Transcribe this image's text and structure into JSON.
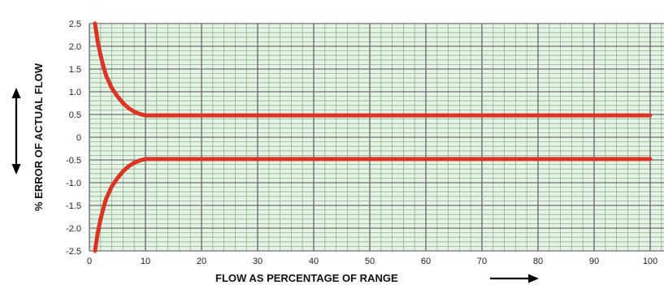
{
  "chart_data": {
    "type": "line",
    "title": "",
    "xlabel": "FLOW AS PERCENTAGE OF RANGE",
    "ylabel": "% ERROR OF ACTUAL FLOW",
    "xlim": [
      0,
      100
    ],
    "ylim": [
      -2.5,
      2.5
    ],
    "x_ticks": [
      0,
      10,
      20,
      30,
      40,
      50,
      60,
      70,
      80,
      90,
      100
    ],
    "x_tick_labels": [
      "0",
      "10",
      "20",
      "30",
      "40",
      "50",
      "60",
      "70",
      "80",
      "90",
      "100"
    ],
    "y_ticks": [
      2.5,
      2.0,
      1.5,
      1.0,
      0.5,
      0,
      -0.5,
      -1.0,
      -1.5,
      -2.0,
      -2.5
    ],
    "y_tick_labels": [
      "2.5",
      "2.0",
      "1.5",
      "1.0",
      "0.5",
      "0",
      "-0.5",
      "-1.0",
      "-1.5",
      "-2.0",
      "-2.5"
    ],
    "grid": true,
    "legend": false,
    "series": [
      {
        "x": [
          1,
          1.5,
          2,
          2.5,
          3,
          4,
          5,
          6,
          7,
          8,
          9,
          10,
          20,
          30,
          40,
          50,
          60,
          70,
          80,
          90,
          100
        ],
        "y": [
          2.5,
          2.1,
          1.8,
          1.55,
          1.35,
          1.08,
          0.9,
          0.75,
          0.64,
          0.56,
          0.51,
          0.48,
          0.48,
          0.48,
          0.48,
          0.48,
          0.48,
          0.48,
          0.48,
          0.48,
          0.48
        ]
      },
      {
        "x": [
          1,
          1.5,
          2,
          2.5,
          3,
          4,
          5,
          6,
          7,
          8,
          9,
          10,
          20,
          30,
          40,
          50,
          60,
          70,
          80,
          90,
          100
        ],
        "y": [
          -2.5,
          -2.1,
          -1.8,
          -1.55,
          -1.35,
          -1.08,
          -0.9,
          -0.75,
          -0.64,
          -0.56,
          -0.51,
          -0.48,
          -0.48,
          -0.48,
          -0.48,
          -0.48,
          -0.48,
          -0.48,
          -0.48,
          -0.48,
          -0.48
        ]
      }
    ]
  },
  "colors": {
    "background": "#ffffff",
    "plot_fill": "#e6f4e6",
    "minor_grid": "#8fb08f",
    "major_grid": "#6f6f6f",
    "curve": "#dd3322",
    "text": "#111111"
  },
  "icons": [
    "up-down-arrow-icon",
    "right-arrow-icon"
  ]
}
